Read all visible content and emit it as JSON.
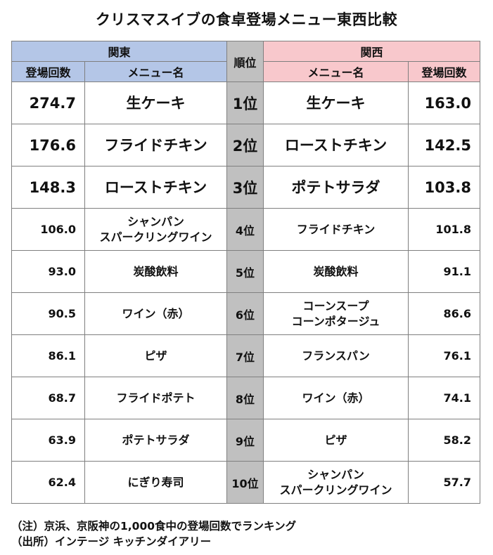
{
  "title": "クリスマスイブの食卓登場メニュー東西比較",
  "headers": {
    "kanto": "関東",
    "kansai": "関西",
    "rank": "順位",
    "count": "登場回数",
    "menu": "メニュー名"
  },
  "rows": [
    {
      "rank": "1位",
      "kanto_count": "274.7",
      "kanto_menu": [
        "生ケーキ"
      ],
      "kansai_menu": [
        "生ケーキ"
      ],
      "kansai_count": "163.0"
    },
    {
      "rank": "2位",
      "kanto_count": "176.6",
      "kanto_menu": [
        "フライドチキン"
      ],
      "kansai_menu": [
        "ローストチキン"
      ],
      "kansai_count": "142.5"
    },
    {
      "rank": "3位",
      "kanto_count": "148.3",
      "kanto_menu": [
        "ローストチキン"
      ],
      "kansai_menu": [
        "ポテトサラダ"
      ],
      "kansai_count": "103.8"
    },
    {
      "rank": "4位",
      "kanto_count": "106.0",
      "kanto_menu": [
        "シャンパン",
        "スパークリングワイン"
      ],
      "kansai_menu": [
        "フライドチキン"
      ],
      "kansai_count": "101.8"
    },
    {
      "rank": "5位",
      "kanto_count": "93.0",
      "kanto_menu": [
        "炭酸飲料"
      ],
      "kansai_menu": [
        "炭酸飲料"
      ],
      "kansai_count": "91.1"
    },
    {
      "rank": "6位",
      "kanto_count": "90.5",
      "kanto_menu": [
        "ワイン（赤）"
      ],
      "kansai_menu": [
        "コーンスープ",
        "コーンポタージュ"
      ],
      "kansai_count": "86.6"
    },
    {
      "rank": "7位",
      "kanto_count": "86.1",
      "kanto_menu": [
        "ピザ"
      ],
      "kansai_menu": [
        "フランスパン"
      ],
      "kansai_count": "76.1"
    },
    {
      "rank": "8位",
      "kanto_count": "68.7",
      "kanto_menu": [
        "フライドポテト"
      ],
      "kansai_menu": [
        "ワイン（赤）"
      ],
      "kansai_count": "74.1"
    },
    {
      "rank": "9位",
      "kanto_count": "63.9",
      "kanto_menu": [
        "ポテトサラダ"
      ],
      "kansai_menu": [
        "ピザ"
      ],
      "kansai_count": "58.2"
    },
    {
      "rank": "10位",
      "kanto_count": "62.4",
      "kanto_menu": [
        "にぎり寿司"
      ],
      "kansai_menu": [
        "シャンパン",
        "スパークリングワイン"
      ],
      "kansai_count": "57.7"
    }
  ],
  "notes": {
    "note": "（注）京浜、京阪神の1,000食中の登場回数でランキング",
    "source": "（出所）インテージ キッチンダイアリー"
  },
  "colors": {
    "kanto_header": "#b4c6e7",
    "kansai_header": "#f8c8cc",
    "rank_column": "#c0c0c0"
  }
}
